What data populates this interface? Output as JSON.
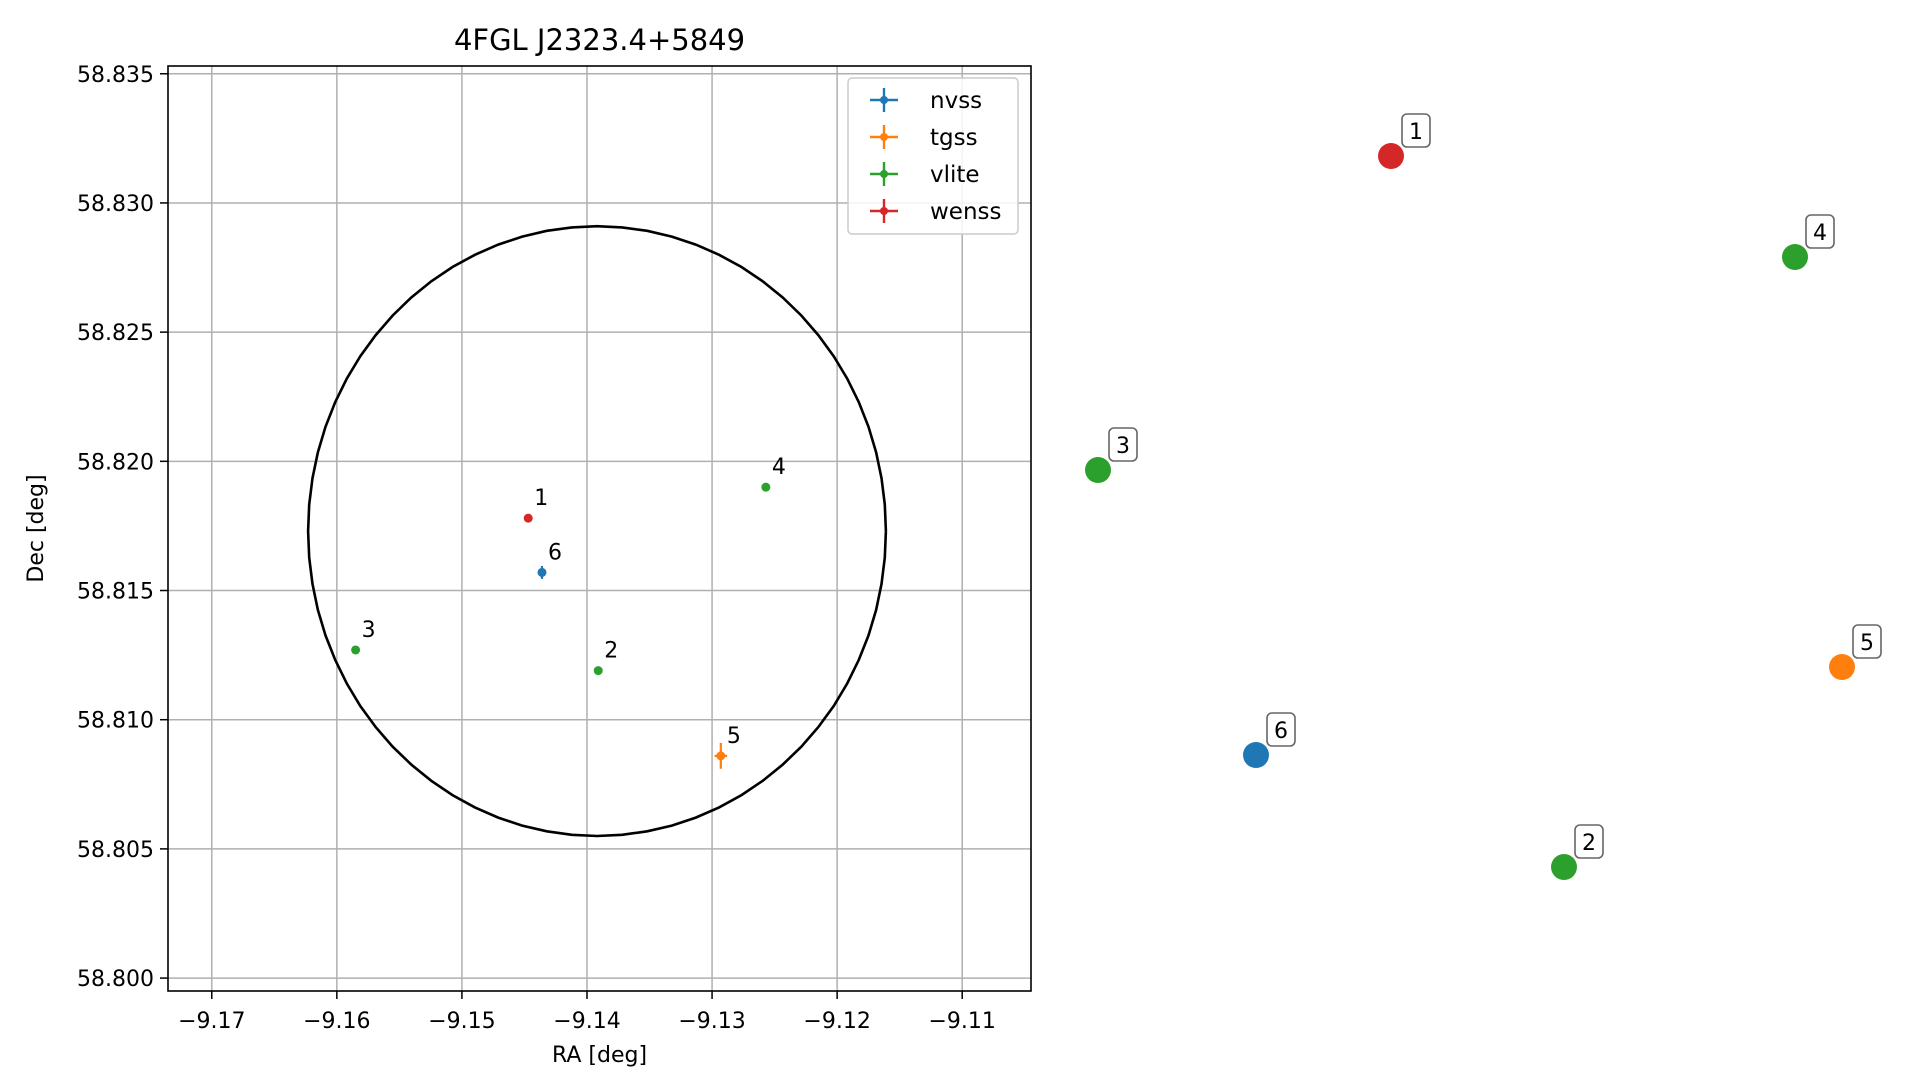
{
  "chart_data": {
    "type": "scatter",
    "title": "4FGL J2323.4+5849",
    "xlabel": "RA [deg]",
    "ylabel": "Dec [deg]",
    "xlim": [
      -9.1735,
      -9.1045
    ],
    "ylim": [
      58.7995,
      58.8353
    ],
    "xticks": [
      -9.17,
      -9.16,
      -9.15,
      -9.14,
      -9.13,
      -9.12,
      -9.11
    ],
    "xtick_labels": [
      "−9.17",
      "−9.16",
      "−9.15",
      "−9.14",
      "−9.13",
      "−9.12",
      "−9.11"
    ],
    "yticks": [
      58.8,
      58.805,
      58.81,
      58.815,
      58.82,
      58.825,
      58.83,
      58.835
    ],
    "ytick_labels": [
      "58.800",
      "58.805",
      "58.810",
      "58.815",
      "58.820",
      "58.825",
      "58.830",
      "58.835"
    ],
    "grid": true,
    "legend_position": "upper right",
    "circle": {
      "center_ra": -9.1392,
      "center_dec": 58.8173,
      "radius_ra": 0.0231,
      "radius_dec": 0.0118,
      "color": "#000000"
    },
    "series": [
      {
        "name": "nvss",
        "color": "#1f77b4",
        "points": [
          {
            "label": "6",
            "ra": -9.1436,
            "dec": 58.8157,
            "err_ra": 0.0003,
            "err_dec": 0.00025
          }
        ]
      },
      {
        "name": "tgss",
        "color": "#ff7f0e",
        "points": [
          {
            "label": "5",
            "ra": -9.1293,
            "dec": 58.8086,
            "err_ra": 0.0005,
            "err_dec": 0.0005
          }
        ]
      },
      {
        "name": "vlite",
        "color": "#2ca02c",
        "points": [
          {
            "label": "2",
            "ra": -9.1391,
            "dec": 58.8119,
            "err_ra": 0.0002,
            "err_dec": 0.0001
          },
          {
            "label": "3",
            "ra": -9.1585,
            "dec": 58.8127,
            "err_ra": 0.0002,
            "err_dec": 0.00015
          },
          {
            "label": "4",
            "ra": -9.1257,
            "dec": 58.819,
            "err_ra": 0.0002,
            "err_dec": 0.00012
          }
        ]
      },
      {
        "name": "wenss",
        "color": "#d62728",
        "points": [
          {
            "label": "1",
            "ra": -9.1447,
            "dec": 58.8178,
            "err_ra": 0.0001,
            "err_dec": 0.0001
          }
        ]
      }
    ],
    "side_markers": [
      {
        "label": "1",
        "color": "#d62728"
      },
      {
        "label": "4",
        "color": "#2ca02c"
      },
      {
        "label": "3",
        "color": "#2ca02c"
      },
      {
        "label": "5",
        "color": "#ff7f0e"
      },
      {
        "label": "6",
        "color": "#1f77b4"
      },
      {
        "label": "2",
        "color": "#2ca02c"
      }
    ]
  }
}
